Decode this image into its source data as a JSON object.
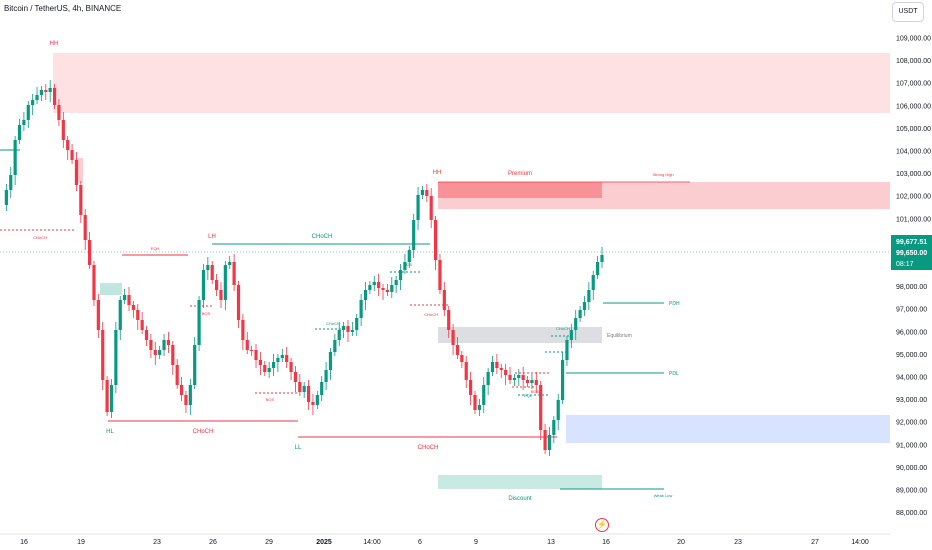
{
  "header": {
    "title": "Bitcoin / TetherUS, 4h, BINANCE",
    "currency_button": "USDT"
  },
  "price_axis": {
    "ticks": [
      "109,000.00",
      "108,000.00",
      "107,000.00",
      "106,000.00",
      "105,000.00",
      "104,000.00",
      "103,000.00",
      "102,000.00",
      "101,000.00",
      "100,000.00",
      "99,000.00",
      "98,000.00",
      "97,000.00",
      "96,000.00",
      "95,000.00",
      "94,000.00",
      "93,000.00",
      "92,000.00",
      "91,000.00",
      "90,000.00",
      "89,000.00",
      "88,000.00"
    ],
    "last_price": "99,677.51",
    "prev_price": "99,650.00",
    "countdown": "08:17",
    "last_price_color": "#089981"
  },
  "time_axis": {
    "ticks": [
      "16",
      "19",
      "23",
      "26",
      "29",
      "2025",
      "14:00",
      "6",
      "9",
      "13",
      "16",
      "20",
      "23",
      "27",
      "14:00"
    ]
  },
  "labels": {
    "hh_left": "HH",
    "hh_right": "HH",
    "lh": "LH",
    "hl": "HL",
    "ll": "LL",
    "choch_top": "CHoCH",
    "choch_bottom_left": "CHoCH",
    "choch_bottom_mid": "CHoCH",
    "choch_small_left": "CHoCH",
    "choch_small_mid": "CHoCH",
    "choch_small_right": "CHoCH",
    "choch_small_far": "CHoCH",
    "bos_a": "BOS",
    "bos_b": "BOS",
    "bos_c": "BOS",
    "bos_d": "BOS",
    "eqh": "EQH",
    "eql": "EQL",
    "premium": "Premium",
    "equilibrium": "Equilibrium",
    "discount": "Discount",
    "strong_high": "Strong High",
    "weak_low": "Weak Low",
    "pdh": "PDH",
    "pdl": "PDL"
  },
  "colors": {
    "up": "#089981",
    "down": "#f23645",
    "premium_zone": "#f23645",
    "discount_zone": "#089981",
    "ob_blue": "#2962ff",
    "equilibrium_zone": "#787b86"
  },
  "icons": {
    "alert": "lightning-alert-icon"
  }
}
